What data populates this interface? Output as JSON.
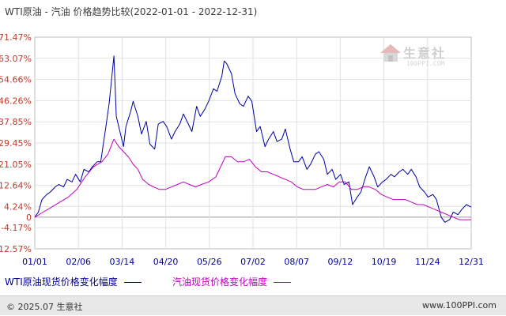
{
  "chart_data": {
    "type": "line",
    "title": "WTI原油 - 汽油 价格趋势比较(2022-01-01 - 2022-12-31)",
    "x_ticks": [
      "01/01",
      "02/06",
      "03/14",
      "04/20",
      "05/26",
      "07/02",
      "08/07",
      "09/12",
      "10/19",
      "11/24",
      "12/31"
    ],
    "y_ticks": [
      "71.47%",
      "63.07%",
      "54.66%",
      "46.26%",
      "37.85%",
      "29.45%",
      "21.05%",
      "12.64%",
      "4.24%",
      "-4.17%",
      "-12.57%"
    ],
    "zero_label": "0",
    "ylim": [
      -12.57,
      71.47
    ],
    "xlim": [
      "2022-01-01",
      "2022-12-31"
    ],
    "grid": true,
    "legend_position": "bottom",
    "series": [
      {
        "name": "WTI原油现货价格变化幅度",
        "color": "#0000a0",
        "points": [
          [
            "2022-01-01",
            0
          ],
          [
            "2022-01-04",
            2
          ],
          [
            "2022-01-07",
            7
          ],
          [
            "2022-01-11",
            9
          ],
          [
            "2022-01-14",
            10
          ],
          [
            "2022-01-18",
            12
          ],
          [
            "2022-01-21",
            13
          ],
          [
            "2022-01-25",
            12
          ],
          [
            "2022-01-28",
            15
          ],
          [
            "2022-02-01",
            14
          ],
          [
            "2022-02-04",
            17
          ],
          [
            "2022-02-08",
            14
          ],
          [
            "2022-02-11",
            19
          ],
          [
            "2022-02-15",
            18
          ],
          [
            "2022-02-18",
            20
          ],
          [
            "2022-02-22",
            22
          ],
          [
            "2022-02-25",
            22
          ],
          [
            "2022-03-01",
            35
          ],
          [
            "2022-03-04",
            45
          ],
          [
            "2022-03-08",
            64
          ],
          [
            "2022-03-10",
            40
          ],
          [
            "2022-03-14",
            32
          ],
          [
            "2022-03-16",
            28
          ],
          [
            "2022-03-18",
            36
          ],
          [
            "2022-03-22",
            42
          ],
          [
            "2022-03-24",
            46
          ],
          [
            "2022-03-28",
            40
          ],
          [
            "2022-03-31",
            33
          ],
          [
            "2022-04-04",
            38
          ],
          [
            "2022-04-07",
            29
          ],
          [
            "2022-04-11",
            27
          ],
          [
            "2022-04-14",
            37
          ],
          [
            "2022-04-18",
            38
          ],
          [
            "2022-04-21",
            36
          ],
          [
            "2022-04-25",
            31
          ],
          [
            "2022-04-28",
            34
          ],
          [
            "2022-05-02",
            37
          ],
          [
            "2022-05-05",
            41
          ],
          [
            "2022-05-09",
            37
          ],
          [
            "2022-05-12",
            34
          ],
          [
            "2022-05-16",
            44
          ],
          [
            "2022-05-19",
            40
          ],
          [
            "2022-05-23",
            43
          ],
          [
            "2022-05-26",
            46
          ],
          [
            "2022-05-30",
            51
          ],
          [
            "2022-06-02",
            50
          ],
          [
            "2022-06-06",
            56
          ],
          [
            "2022-06-08",
            62
          ],
          [
            "2022-06-10",
            61
          ],
          [
            "2022-06-14",
            57
          ],
          [
            "2022-06-17",
            49
          ],
          [
            "2022-06-21",
            45
          ],
          [
            "2022-06-24",
            44
          ],
          [
            "2022-06-28",
            48
          ],
          [
            "2022-07-01",
            46
          ],
          [
            "2022-07-05",
            34
          ],
          [
            "2022-07-08",
            36
          ],
          [
            "2022-07-12",
            28
          ],
          [
            "2022-07-15",
            31
          ],
          [
            "2022-07-19",
            34
          ],
          [
            "2022-07-22",
            30
          ],
          [
            "2022-07-26",
            31
          ],
          [
            "2022-07-29",
            35
          ],
          [
            "2022-08-02",
            27
          ],
          [
            "2022-08-05",
            22
          ],
          [
            "2022-08-09",
            22
          ],
          [
            "2022-08-12",
            24
          ],
          [
            "2022-08-16",
            19
          ],
          [
            "2022-08-19",
            21
          ],
          [
            "2022-08-23",
            25
          ],
          [
            "2022-08-26",
            26
          ],
          [
            "2022-08-30",
            23
          ],
          [
            "2022-09-02",
            17
          ],
          [
            "2022-09-06",
            19
          ],
          [
            "2022-09-09",
            15
          ],
          [
            "2022-09-13",
            17
          ],
          [
            "2022-09-16",
            13
          ],
          [
            "2022-09-20",
            14
          ],
          [
            "2022-09-23",
            5
          ],
          [
            "2022-09-27",
            8
          ],
          [
            "2022-09-30",
            10
          ],
          [
            "2022-10-04",
            16
          ],
          [
            "2022-10-07",
            20
          ],
          [
            "2022-10-11",
            16
          ],
          [
            "2022-10-14",
            12
          ],
          [
            "2022-10-18",
            14
          ],
          [
            "2022-10-21",
            15
          ],
          [
            "2022-10-25",
            17
          ],
          [
            "2022-10-28",
            16
          ],
          [
            "2022-11-01",
            18
          ],
          [
            "2022-11-04",
            19
          ],
          [
            "2022-11-08",
            17
          ],
          [
            "2022-11-11",
            19
          ],
          [
            "2022-11-15",
            16
          ],
          [
            "2022-11-18",
            12
          ],
          [
            "2022-11-22",
            10
          ],
          [
            "2022-11-25",
            8
          ],
          [
            "2022-11-29",
            9
          ],
          [
            "2022-12-02",
            7
          ],
          [
            "2022-12-06",
            0
          ],
          [
            "2022-12-09",
            -2
          ],
          [
            "2022-12-13",
            -1
          ],
          [
            "2022-12-16",
            2
          ],
          [
            "2022-12-20",
            1
          ],
          [
            "2022-12-23",
            3
          ],
          [
            "2022-12-27",
            5
          ],
          [
            "2022-12-31",
            4
          ]
        ]
      },
      {
        "name": "汽油现货价格变化幅度",
        "color": "#c000c0",
        "points": [
          [
            "2022-01-01",
            0
          ],
          [
            "2022-01-08",
            2
          ],
          [
            "2022-01-15",
            4
          ],
          [
            "2022-01-22",
            6
          ],
          [
            "2022-01-29",
            8
          ],
          [
            "2022-02-05",
            11
          ],
          [
            "2022-02-12",
            16
          ],
          [
            "2022-02-19",
            20
          ],
          [
            "2022-02-26",
            22
          ],
          [
            "2022-03-03",
            25
          ],
          [
            "2022-03-08",
            31
          ],
          [
            "2022-03-12",
            28
          ],
          [
            "2022-03-16",
            26
          ],
          [
            "2022-03-20",
            24
          ],
          [
            "2022-03-24",
            21
          ],
          [
            "2022-03-28",
            19
          ],
          [
            "2022-04-01",
            15
          ],
          [
            "2022-04-06",
            13
          ],
          [
            "2022-04-10",
            12
          ],
          [
            "2022-04-15",
            11
          ],
          [
            "2022-04-20",
            11
          ],
          [
            "2022-04-25",
            12
          ],
          [
            "2022-04-30",
            13
          ],
          [
            "2022-05-05",
            14
          ],
          [
            "2022-05-10",
            13
          ],
          [
            "2022-05-15",
            12
          ],
          [
            "2022-05-20",
            13
          ],
          [
            "2022-05-26",
            14
          ],
          [
            "2022-06-01",
            16
          ],
          [
            "2022-06-05",
            20
          ],
          [
            "2022-06-09",
            24
          ],
          [
            "2022-06-14",
            24
          ],
          [
            "2022-06-19",
            22
          ],
          [
            "2022-06-24",
            22
          ],
          [
            "2022-06-29",
            23
          ],
          [
            "2022-07-04",
            20
          ],
          [
            "2022-07-09",
            18
          ],
          [
            "2022-07-14",
            18
          ],
          [
            "2022-07-19",
            17
          ],
          [
            "2022-07-24",
            16
          ],
          [
            "2022-07-29",
            15
          ],
          [
            "2022-08-03",
            14
          ],
          [
            "2022-08-08",
            12
          ],
          [
            "2022-08-13",
            11
          ],
          [
            "2022-08-18",
            11
          ],
          [
            "2022-08-23",
            11
          ],
          [
            "2022-08-28",
            12
          ],
          [
            "2022-09-02",
            13
          ],
          [
            "2022-09-07",
            12
          ],
          [
            "2022-09-12",
            14
          ],
          [
            "2022-09-17",
            14
          ],
          [
            "2022-09-22",
            11
          ],
          [
            "2022-09-27",
            11
          ],
          [
            "2022-10-02",
            12
          ],
          [
            "2022-10-07",
            12
          ],
          [
            "2022-10-12",
            11
          ],
          [
            "2022-10-17",
            9
          ],
          [
            "2022-10-22",
            8
          ],
          [
            "2022-10-27",
            7
          ],
          [
            "2022-11-01",
            7
          ],
          [
            "2022-11-06",
            7
          ],
          [
            "2022-11-11",
            6
          ],
          [
            "2022-11-16",
            5
          ],
          [
            "2022-11-21",
            5
          ],
          [
            "2022-11-26",
            4
          ],
          [
            "2022-12-01",
            3
          ],
          [
            "2022-12-06",
            2
          ],
          [
            "2022-12-11",
            1
          ],
          [
            "2022-12-16",
            0
          ],
          [
            "2022-12-21",
            -1
          ],
          [
            "2022-12-26",
            -1
          ],
          [
            "2022-12-31",
            -1
          ]
        ]
      }
    ]
  },
  "watermark": {
    "text": "生意社",
    "sub": "100PPI.COM"
  },
  "footer": {
    "copyright": "© 2025.07 生意社",
    "url": "www.100PPI.com"
  }
}
